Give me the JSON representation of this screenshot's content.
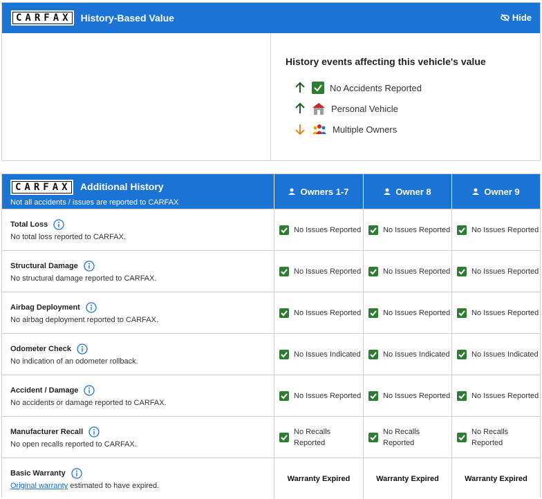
{
  "value_card": {
    "logo": "CARFAX",
    "title": "History-Based Value",
    "hide": "Hide",
    "events_title": "History events affecting this vehicle's value",
    "events": [
      "No Accidents Reported",
      "Personal Vehicle",
      "Multiple Owners"
    ]
  },
  "history_table": {
    "logo": "CARFAX",
    "title": "Additional History",
    "subtitle": "Not all accidents / issues are reported to CARFAX",
    "columns": [
      "Owners 1-7",
      "Owner 8",
      "Owner 9"
    ],
    "rows": [
      {
        "title": "Total Loss",
        "description": "No total loss reported to CARFAX.",
        "cells": [
          "No Issues Reported",
          "No Issues Reported",
          "No Issues Reported"
        ]
      },
      {
        "title": "Structural Damage",
        "description": "No structural damage reported to CARFAX.",
        "cells": [
          "No Issues Reported",
          "No Issues Reported",
          "No Issues Reported"
        ]
      },
      {
        "title": "Airbag Deployment",
        "description": "No airbag deployment reported to CARFAX.",
        "cells": [
          "No Issues Reported",
          "No Issues Reported",
          "No Issues Reported"
        ]
      },
      {
        "title": "Odometer Check",
        "description": "No indication of an odometer rollback.",
        "cells": [
          "No Issues Indicated",
          "No Issues Indicated",
          "No Issues Indicated"
        ]
      },
      {
        "title": "Accident / Damage",
        "description": "No accidents or damage reported to CARFAX.",
        "cells": [
          "No Issues Reported",
          "No Issues Reported",
          "No Issues Reported"
        ]
      },
      {
        "title": "Manufacturer Recall",
        "description": "No open recalls reported to CARFAX.",
        "cells": [
          "No Recalls Reported",
          "No Recalls Reported",
          "No Recalls Reported"
        ]
      },
      {
        "title": "Basic Warranty",
        "description_link": "Original warranty",
        "description": "estimated to have expired.",
        "cells": [
          "Warranty Expired",
          "Warranty Expired",
          "Warranty Expired"
        ]
      }
    ]
  }
}
